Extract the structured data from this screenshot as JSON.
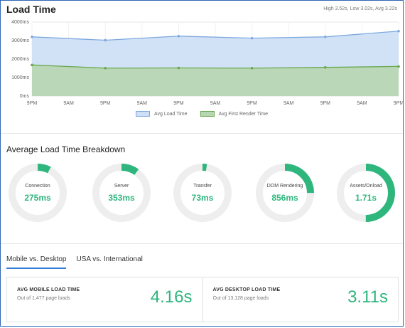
{
  "header": {
    "title": "Load Time",
    "stats": "High 3.52s, Low 3.02s, Avg 3.22s"
  },
  "legend": {
    "items": [
      {
        "label": "Avg Load Time",
        "color": "#7fa9df",
        "fill": "#cfe0f6"
      },
      {
        "label": "Avg First Render Time",
        "color": "#6aa84f",
        "fill": "#b8d6b3"
      }
    ]
  },
  "chart_data": {
    "type": "area",
    "title": "Load Time",
    "xlabel": "",
    "ylabel": "",
    "ylim": [
      0,
      4000
    ],
    "y_ticks": [
      "0ms",
      "1000ms",
      "2000ms",
      "3000ms",
      "4000ms"
    ],
    "x_ticks": [
      "9PM",
      "9AM",
      "9PM",
      "9AM",
      "9PM",
      "9AM",
      "9PM",
      "9AM",
      "9PM",
      "9AM",
      "9PM"
    ],
    "series": [
      {
        "name": "Avg Load Time",
        "color": "#7fa9df",
        "fill": "#cfe0f6",
        "values": [
          3200,
          3020,
          3240,
          3130,
          3200,
          3510
        ]
      },
      {
        "name": "Avg First Render Time",
        "color": "#6aa84f",
        "fill": "#b8d6b3",
        "values": [
          1680,
          1510,
          1520,
          1510,
          1550,
          1600
        ]
      }
    ],
    "grid": true
  },
  "breakdown": {
    "title": "Average Load Time Breakdown",
    "items": [
      {
        "label": "Connection",
        "value": "275ms",
        "percent": 0.075
      },
      {
        "label": "Server",
        "value": "353ms",
        "percent": 0.1
      },
      {
        "label": "Transfer",
        "value": "73ms",
        "percent": 0.025
      },
      {
        "label": "DOM Rendering",
        "value": "856ms",
        "percent": 0.25
      },
      {
        "label": "Assets/Onload",
        "value": "1.71s",
        "percent": 0.5
      }
    ]
  },
  "tabs": {
    "items": [
      {
        "label": "Mobile vs. Desktop",
        "active": true
      },
      {
        "label": "USA vs. International",
        "active": false
      }
    ]
  },
  "cards": [
    {
      "title": "AVG MOBILE LOAD TIME",
      "subtitle": "Out of 1,477 page loads",
      "value": "4.16s"
    },
    {
      "title": "AVG DESKTOP LOAD TIME",
      "subtitle": "Out of 13,128 page loads",
      "value": "3.11s"
    }
  ],
  "colors": {
    "accent": "#2eb67d",
    "ring_bg": "#eeeeee",
    "tab_accent": "#2e7bd8"
  }
}
